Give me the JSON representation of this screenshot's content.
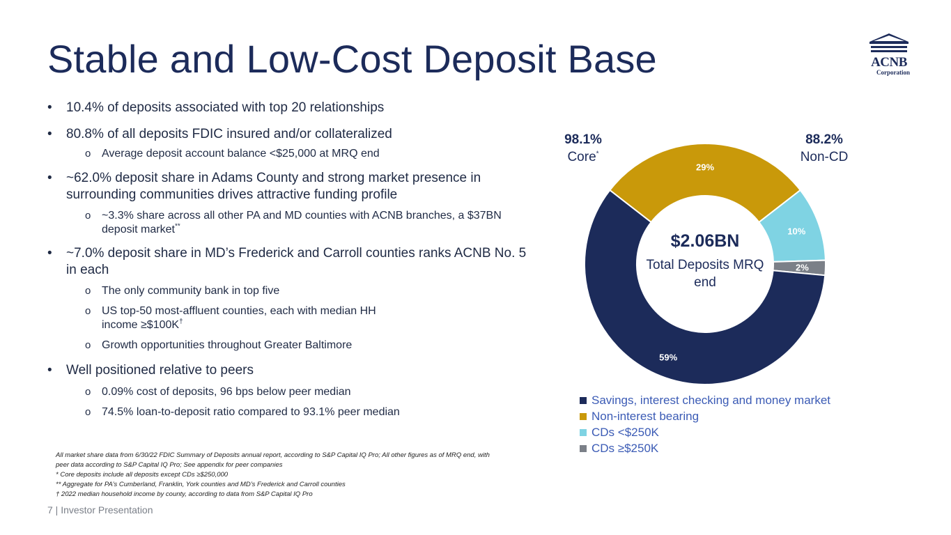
{
  "slide": {
    "title": "Stable and Low-Cost Deposit Base",
    "footer": "7  |  Investor Presentation"
  },
  "logo": {
    "name": "ACNB",
    "sub": "Corporation",
    "icon": "bank-building-icon"
  },
  "bullets": [
    {
      "text": "10.4% of deposits associated with top 20 relationships",
      "subs": []
    },
    {
      "text": "80.8% of all deposits FDIC insured and/or collateralized",
      "subs": [
        {
          "text": "Average deposit account balance <$25,000 at MRQ end"
        }
      ]
    },
    {
      "text": "~62.0% deposit share in Adams County and strong market presence in surrounding communities drives attractive funding profile",
      "subs": [
        {
          "text": "~3.3% share across all other PA and MD counties with ACNB branches, a $37BN deposit market",
          "sup": "**"
        }
      ]
    },
    {
      "text": "~7.0% deposit share in MD’s Frederick and Carroll counties ranks ACNB No. 5 in each",
      "subs": [
        {
          "text": "The only community bank in top five"
        },
        {
          "text": "US top-50 most-affluent counties, each with median HH income ≥$100K",
          "sup": "†"
        },
        {
          "text": "Growth opportunities throughout Greater Baltimore"
        }
      ]
    },
    {
      "text": "Well positioned relative to peers",
      "subs": [
        {
          "text": "0.09% cost of deposits, 96 bps below peer median"
        },
        {
          "text": "74.5% loan-to-deposit ratio compared to 93.1% peer median"
        }
      ]
    }
  ],
  "footnotes": [
    "All market share data from 6/30/22 FDIC Summary of Deposits annual report, according to S&P Capital IQ Pro; All other figures as of MRQ end, with peer data according to S&P Capital IQ Pro; See appendix for peer companies",
    "* Core deposits include all deposits except CDs ≥$250,000",
    "** Aggregate for PA’s Cumberland, Franklin, York counties and MD’s Frederick and Carroll counties",
    "† 2022 median household income by county, according to data from S&P Capital IQ Pro"
  ],
  "chart_data": {
    "type": "pie",
    "style": "donut",
    "center_value": "$2.06BN",
    "center_label": "Total Deposits MRQ end",
    "categories": [
      "Savings, interest checking and money market",
      "Non-interest bearing",
      "CDs <$250K",
      "CDs ≥$250K"
    ],
    "values": [
      59,
      29,
      10,
      2
    ],
    "data_labels": [
      "59%",
      "29%",
      "10%",
      "2%"
    ],
    "colors": [
      "#1c2b5a",
      "#c9990a",
      "#7fd3e3",
      "#7b8088"
    ],
    "legend_position": "bottom",
    "annotations": [
      {
        "value": "98.1%",
        "label": "Core",
        "sup": "*"
      },
      {
        "value": "88.2%",
        "label": "Non-CD"
      }
    ]
  }
}
